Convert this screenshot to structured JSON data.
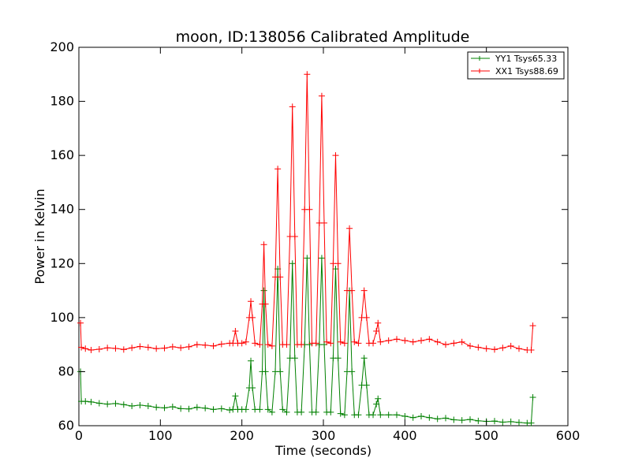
{
  "chart_data": {
    "type": "line",
    "title": "moon, ID:138056 Calibrated Amplitude",
    "xlabel": "Time (seconds)",
    "ylabel": "Power in Kelvin",
    "xlim": [
      0,
      600
    ],
    "ylim": [
      60,
      200
    ],
    "xticks": [
      "0",
      "100",
      "200",
      "300",
      "400",
      "500",
      "600"
    ],
    "yticks": [
      "60",
      "80",
      "100",
      "120",
      "140",
      "160",
      "180",
      "200"
    ],
    "grid": false,
    "legend_position": "top-right",
    "series": [
      {
        "name": "YY1 Tsys65.33",
        "color": "#008000",
        "marker": "plus",
        "points": [
          [
            2,
            80
          ],
          [
            3,
            69
          ],
          [
            8,
            69
          ],
          [
            15,
            68.8
          ],
          [
            25,
            68.3
          ],
          [
            35,
            68
          ],
          [
            45,
            68.2
          ],
          [
            55,
            67.8
          ],
          [
            65,
            67.3
          ],
          [
            75,
            67.6
          ],
          [
            85,
            67.3
          ],
          [
            95,
            66.8
          ],
          [
            105,
            66.6
          ],
          [
            115,
            67
          ],
          [
            125,
            66.3
          ],
          [
            135,
            66.2
          ],
          [
            145,
            66.8
          ],
          [
            155,
            66.5
          ],
          [
            165,
            66
          ],
          [
            175,
            66.3
          ],
          [
            185,
            65.8
          ],
          [
            189,
            66
          ],
          [
            192,
            71
          ],
          [
            195,
            66
          ],
          [
            200,
            66
          ],
          [
            205,
            66
          ],
          [
            209,
            74
          ],
          [
            211,
            84
          ],
          [
            213,
            74
          ],
          [
            216,
            66
          ],
          [
            222,
            66
          ],
          [
            225,
            80
          ],
          [
            227,
            110
          ],
          [
            229,
            80
          ],
          [
            232,
            66
          ],
          [
            237,
            65
          ],
          [
            241,
            80
          ],
          [
            244,
            118
          ],
          [
            247,
            80
          ],
          [
            250,
            66
          ],
          [
            255,
            65
          ],
          [
            259,
            85
          ],
          [
            262,
            120
          ],
          [
            265,
            85
          ],
          [
            268,
            65
          ],
          [
            273,
            65
          ],
          [
            277,
            90
          ],
          [
            280,
            122
          ],
          [
            283,
            90
          ],
          [
            286,
            65
          ],
          [
            291,
            65
          ],
          [
            295,
            90
          ],
          [
            298,
            122
          ],
          [
            301,
            90
          ],
          [
            304,
            65
          ],
          [
            309,
            65
          ],
          [
            312,
            85
          ],
          [
            315,
            118
          ],
          [
            318,
            85
          ],
          [
            321,
            64.5
          ],
          [
            326,
            64
          ],
          [
            329,
            80
          ],
          [
            332,
            110
          ],
          [
            335,
            80
          ],
          [
            338,
            64
          ],
          [
            343,
            64
          ],
          [
            347,
            75
          ],
          [
            350,
            85
          ],
          [
            353,
            75
          ],
          [
            356,
            64
          ],
          [
            361,
            64
          ],
          [
            365,
            68
          ],
          [
            367,
            70
          ],
          [
            370,
            64
          ],
          [
            380,
            64
          ],
          [
            390,
            64
          ],
          [
            400,
            63.5
          ],
          [
            410,
            63
          ],
          [
            420,
            63.5
          ],
          [
            430,
            63
          ],
          [
            440,
            62.5
          ],
          [
            450,
            62.8
          ],
          [
            460,
            62.2
          ],
          [
            470,
            62
          ],
          [
            480,
            62.3
          ],
          [
            490,
            61.8
          ],
          [
            500,
            61.6
          ],
          [
            510,
            61.7
          ],
          [
            520,
            61.3
          ],
          [
            530,
            61.5
          ],
          [
            540,
            61.2
          ],
          [
            550,
            61
          ],
          [
            555,
            61
          ],
          [
            557,
            70.5
          ]
        ]
      },
      {
        "name": "XX1 Tsys88.69",
        "color": "#ff0000",
        "marker": "plus",
        "points": [
          [
            2,
            98
          ],
          [
            3,
            89
          ],
          [
            8,
            88.5
          ],
          [
            15,
            88
          ],
          [
            25,
            88.3
          ],
          [
            35,
            88.8
          ],
          [
            45,
            88.6
          ],
          [
            55,
            88.2
          ],
          [
            65,
            88.8
          ],
          [
            75,
            89.3
          ],
          [
            85,
            89
          ],
          [
            95,
            88.5
          ],
          [
            105,
            88.7
          ],
          [
            115,
            89.2
          ],
          [
            125,
            88.8
          ],
          [
            135,
            89.2
          ],
          [
            145,
            90
          ],
          [
            155,
            89.8
          ],
          [
            165,
            89.5
          ],
          [
            175,
            90.2
          ],
          [
            185,
            90.5
          ],
          [
            189,
            90.5
          ],
          [
            192,
            95
          ],
          [
            195,
            90.5
          ],
          [
            200,
            90.5
          ],
          [
            205,
            91
          ],
          [
            209,
            100
          ],
          [
            211,
            106
          ],
          [
            213,
            100
          ],
          [
            216,
            90.5
          ],
          [
            222,
            90
          ],
          [
            225,
            105
          ],
          [
            227,
            127
          ],
          [
            229,
            105
          ],
          [
            232,
            90
          ],
          [
            237,
            89.5
          ],
          [
            241,
            115
          ],
          [
            244,
            155
          ],
          [
            247,
            115
          ],
          [
            250,
            90
          ],
          [
            255,
            90
          ],
          [
            259,
            130
          ],
          [
            262,
            178
          ],
          [
            265,
            130
          ],
          [
            268,
            90
          ],
          [
            273,
            90
          ],
          [
            277,
            140
          ],
          [
            280,
            190
          ],
          [
            283,
            140
          ],
          [
            286,
            90.5
          ],
          [
            291,
            90.5
          ],
          [
            295,
            135
          ],
          [
            298,
            182
          ],
          [
            301,
            135
          ],
          [
            304,
            91
          ],
          [
            309,
            90.5
          ],
          [
            312,
            120
          ],
          [
            315,
            160
          ],
          [
            318,
            120
          ],
          [
            321,
            91
          ],
          [
            326,
            90.5
          ],
          [
            329,
            110
          ],
          [
            332,
            133
          ],
          [
            335,
            110
          ],
          [
            338,
            91
          ],
          [
            343,
            90.5
          ],
          [
            347,
            100
          ],
          [
            350,
            110
          ],
          [
            353,
            100
          ],
          [
            356,
            90.5
          ],
          [
            361,
            90.5
          ],
          [
            365,
            95
          ],
          [
            367,
            98
          ],
          [
            370,
            91
          ],
          [
            380,
            91.5
          ],
          [
            390,
            92
          ],
          [
            400,
            91.5
          ],
          [
            410,
            91
          ],
          [
            420,
            91.5
          ],
          [
            430,
            92
          ],
          [
            440,
            91
          ],
          [
            450,
            90
          ],
          [
            460,
            90.5
          ],
          [
            470,
            91
          ],
          [
            480,
            89.5
          ],
          [
            490,
            89
          ],
          [
            500,
            88.5
          ],
          [
            510,
            88.2
          ],
          [
            520,
            88.8
          ],
          [
            530,
            89.5
          ],
          [
            540,
            88.5
          ],
          [
            550,
            88
          ],
          [
            555,
            88
          ],
          [
            557,
            97
          ]
        ]
      }
    ]
  }
}
